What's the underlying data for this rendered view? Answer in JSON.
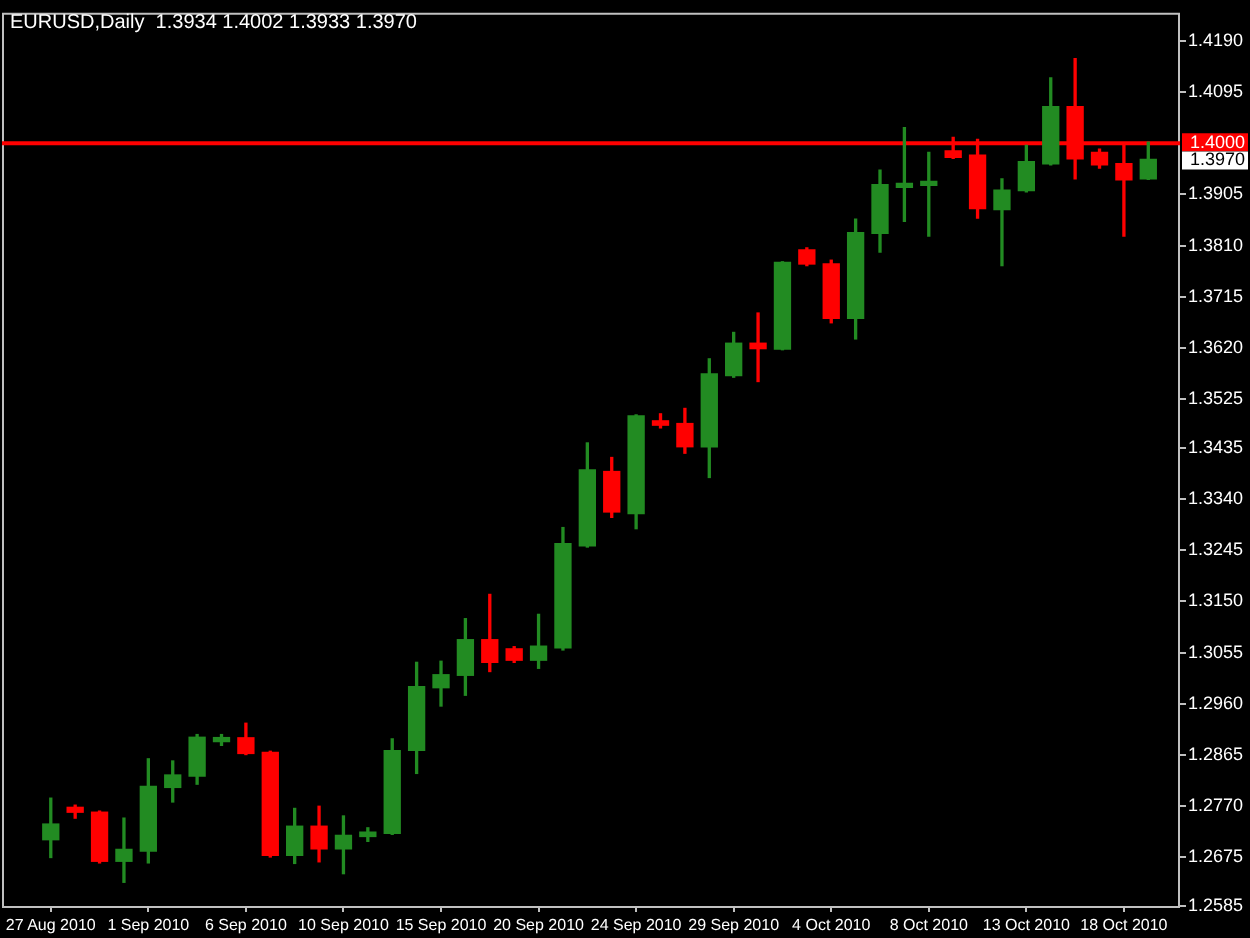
{
  "chart_data": {
    "type": "candlestick",
    "title": "EURUSD,Daily  1.3934 1.4002 1.3933 1.3970",
    "categories": [
      "27 Aug 2010",
      null,
      null,
      null,
      "1 Sep 2010",
      null,
      null,
      null,
      "6 Sep 2010",
      null,
      null,
      null,
      "10 Sep 2010",
      null,
      null,
      null,
      "15 Sep 2010",
      null,
      null,
      null,
      "20 Sep 2010",
      null,
      null,
      null,
      "24 Sep 2010",
      null,
      null,
      null,
      "29 Sep 2010",
      null,
      null,
      null,
      "4 Oct 2010",
      null,
      null,
      null,
      "8 Oct 2010",
      null,
      null,
      null,
      "13 Oct 2010",
      null,
      null,
      null,
      "18 Oct 2010",
      null
    ],
    "ohlc": [
      [
        1.2708,
        1.2785,
        1.2675,
        1.2737
      ],
      [
        1.2768,
        1.2772,
        1.2748,
        1.2759
      ],
      [
        1.2759,
        1.2761,
        1.2665,
        1.2668
      ],
      [
        1.2668,
        1.2748,
        1.2629,
        1.269
      ],
      [
        1.2687,
        1.2858,
        1.2665,
        1.2807
      ],
      [
        1.2805,
        1.2854,
        1.2778,
        1.2828
      ],
      [
        1.2826,
        1.2903,
        1.2811,
        1.2898
      ],
      [
        1.289,
        1.2903,
        1.2883,
        1.2897
      ],
      [
        1.2897,
        1.2924,
        1.2866,
        1.2868
      ],
      [
        1.287,
        1.2872,
        1.2676,
        1.2679
      ],
      [
        1.2679,
        1.2766,
        1.2664,
        1.2733
      ],
      [
        1.2733,
        1.277,
        1.2667,
        1.2691
      ],
      [
        1.2691,
        1.2752,
        1.2645,
        1.2716
      ],
      [
        1.2714,
        1.273,
        1.2705,
        1.2722
      ],
      [
        1.272,
        1.2895,
        1.2718,
        1.2873
      ],
      [
        1.2874,
        1.3037,
        1.2831,
        1.2992
      ],
      [
        1.299,
        1.3039,
        1.2956,
        1.3014
      ],
      [
        1.3013,
        1.3118,
        1.2976,
        1.3079
      ],
      [
        1.3079,
        1.3163,
        1.302,
        1.3037
      ],
      [
        1.3062,
        1.3066,
        1.3037,
        1.3041
      ],
      [
        1.3041,
        1.3126,
        1.3026,
        1.3067
      ],
      [
        1.3064,
        1.3287,
        1.306,
        1.3257
      ],
      [
        1.3253,
        1.3444,
        1.3251,
        1.3394
      ],
      [
        1.3391,
        1.3417,
        1.3306,
        1.3316
      ],
      [
        1.3313,
        1.3496,
        1.3285,
        1.3494
      ],
      [
        1.3485,
        1.3498,
        1.3472,
        1.3477
      ],
      [
        1.348,
        1.3508,
        1.3425,
        1.3437
      ],
      [
        1.3437,
        1.36,
        1.338,
        1.3572
      ],
      [
        1.3569,
        1.3649,
        1.3566,
        1.3629
      ],
      [
        1.3629,
        1.3685,
        1.3558,
        1.3619
      ],
      [
        1.3618,
        1.378,
        1.3617,
        1.3779
      ],
      [
        1.3802,
        1.3806,
        1.3773,
        1.3776
      ],
      [
        1.3776,
        1.3783,
        1.3667,
        1.3675
      ],
      [
        1.3675,
        1.3859,
        1.3637,
        1.3834
      ],
      [
        1.3833,
        1.395,
        1.3798,
        1.3923
      ],
      [
        1.3918,
        1.4029,
        1.3855,
        1.3924
      ],
      [
        1.3922,
        1.3983,
        1.3828,
        1.3929
      ],
      [
        1.3986,
        1.4011,
        1.3972,
        1.3974
      ],
      [
        1.3978,
        1.4007,
        1.3861,
        1.3879
      ],
      [
        1.3877,
        1.3934,
        1.3773,
        1.3913
      ],
      [
        1.3912,
        1.3996,
        1.391,
        1.3966
      ],
      [
        1.3962,
        1.4121,
        1.396,
        1.4068
      ],
      [
        1.4068,
        1.4157,
        1.3934,
        1.3971
      ],
      [
        1.3983,
        1.3989,
        1.3954,
        1.396
      ],
      [
        1.3962,
        1.3996,
        1.3828,
        1.3932
      ],
      [
        1.3934,
        1.4002,
        1.3933,
        1.397
      ]
    ],
    "colors": [
      "#228b22",
      "#ff0000",
      "#ff0000",
      "#228b22",
      "#228b22",
      "#228b22",
      "#228b22",
      "#228b22",
      "#ff0000",
      "#ff0000",
      "#228b22",
      "#ff0000",
      "#228b22",
      "#228b22",
      "#228b22",
      "#228b22",
      "#228b22",
      "#228b22",
      "#ff0000",
      "#ff0000",
      "#228b22",
      "#228b22",
      "#228b22",
      "#ff0000",
      "#228b22",
      "#ff0000",
      "#ff0000",
      "#228b22",
      "#228b22",
      "#ff0000",
      "#228b22",
      "#ff0000",
      "#ff0000",
      "#228b22",
      "#228b22",
      "#228b22",
      "#228b22",
      "#ff0000",
      "#ff0000",
      "#228b22",
      "#228b22",
      "#228b22",
      "#ff0000",
      "#ff0000",
      "#ff0000",
      "#228b22"
    ],
    "ylim": [
      1.2585,
      1.4242
    ],
    "yticks": [
      1.2585,
      1.2675,
      {
        "value": 1.277,
        "label": "1.2770"
      },
      1.2865,
      {
        "value": 1.296,
        "label": "1.2960"
      },
      1.3055,
      {
        "value": 1.315,
        "label": "1.3150"
      },
      1.3245,
      {
        "value": 1.334,
        "label": "1.3340"
      },
      1.3435,
      1.3525,
      {
        "value": 1.362,
        "label": "1.3620"
      },
      1.3715,
      {
        "value": 1.381,
        "label": "1.3810"
      },
      1.3905,
      1.4095,
      {
        "value": 1.419,
        "label": "1.4190"
      }
    ],
    "ref_lines": [
      {
        "axis": "y",
        "value": 1.4,
        "label": "1.4000",
        "color": "#ff0000"
      }
    ],
    "annotations": [
      "1.3970"
    ],
    "grid": false,
    "legend": false
  }
}
